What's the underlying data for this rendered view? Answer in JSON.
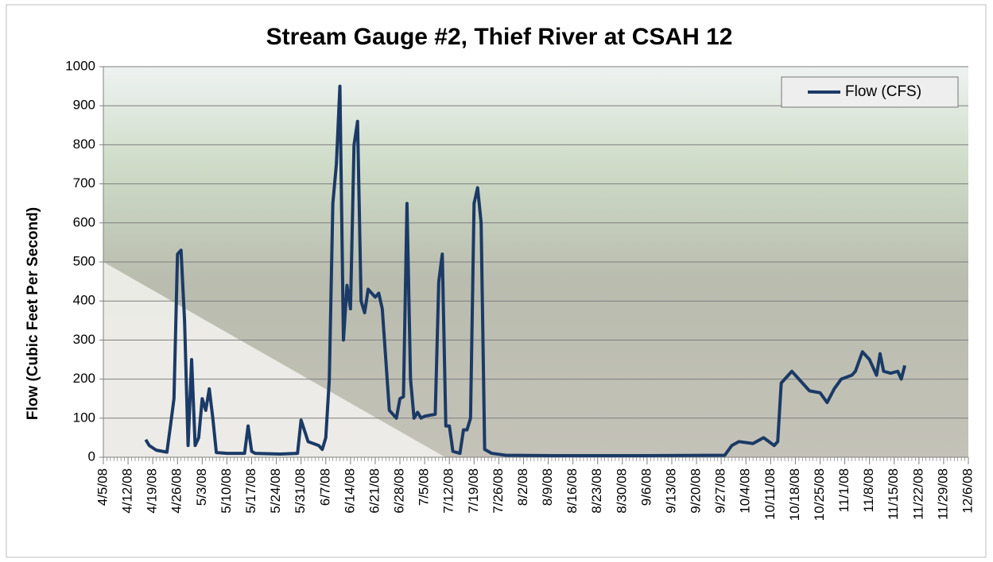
{
  "chart_data": {
    "type": "line",
    "title": "Stream Gauge #2, Thief River at CSAH 12",
    "y_label": "Flow (Cubic Feet Per Second)",
    "legend_position": "upper right",
    "grid": true,
    "x": [
      "4/17/08",
      "4/18/08",
      "4/20/08",
      "4/23/08",
      "4/24/08",
      "4/25/08",
      "4/26/08",
      "4/27/08",
      "4/28/08",
      "4/29/08",
      "4/30/08",
      "5/1/08",
      "5/2/08",
      "5/3/08",
      "5/4/08",
      "5/5/08",
      "5/6/08",
      "5/7/08",
      "5/10/08",
      "5/15/08",
      "5/16/08",
      "5/17/08",
      "5/18/08",
      "5/25/08",
      "5/30/08",
      "5/31/08",
      "6/2/08",
      "6/5/08",
      "6/6/08",
      "6/7/08",
      "6/8/08",
      "6/9/08",
      "6/10/08",
      "6/11/08",
      "6/12/08",
      "6/13/08",
      "6/14/08",
      "6/15/08",
      "6/16/08",
      "6/17/08",
      "6/18/08",
      "6/19/08",
      "6/20/08",
      "6/21/08",
      "6/22/08",
      "6/23/08",
      "6/24/08",
      "6/25/08",
      "6/26/08",
      "6/27/08",
      "6/28/08",
      "6/29/08",
      "6/30/08",
      "7/1/08",
      "7/2/08",
      "7/3/08",
      "7/4/08",
      "7/5/08",
      "7/8/08",
      "7/9/08",
      "7/10/08",
      "7/11/08",
      "7/12/08",
      "7/13/08",
      "7/15/08",
      "7/16/08",
      "7/17/08",
      "7/18/08",
      "7/19/08",
      "7/20/08",
      "7/21/08",
      "7/22/08",
      "7/24/08",
      "7/28/08",
      "8/10/08",
      "9/5/08",
      "9/28/08",
      "9/30/08",
      "10/2/08",
      "10/6/08",
      "10/9/08",
      "10/12/08",
      "10/13/08",
      "10/14/08",
      "10/15/08",
      "10/17/08",
      "10/20/08",
      "10/22/08",
      "10/25/08",
      "10/27/08",
      "10/29/08",
      "10/31/08",
      "11/3/08",
      "11/4/08",
      "11/6/08",
      "11/8/08",
      "11/10/08",
      "11/11/08",
      "11/12/08",
      "11/14/08",
      "11/16/08",
      "11/17/08",
      "11/18/08"
    ],
    "series": [
      {
        "name": "Flow (CFS)",
        "color": "#1b3a66",
        "values": [
          45,
          30,
          18,
          13,
          80,
          150,
          520,
          530,
          350,
          30,
          250,
          30,
          50,
          150,
          120,
          175,
          100,
          12,
          10,
          10,
          80,
          15,
          10,
          8,
          10,
          95,
          40,
          30,
          20,
          50,
          200,
          650,
          750,
          950,
          300,
          440,
          380,
          800,
          860,
          400,
          370,
          430,
          420,
          410,
          420,
          380,
          250,
          120,
          110,
          100,
          150,
          155,
          650,
          200,
          100,
          115,
          100,
          105,
          110,
          450,
          520,
          80,
          80,
          15,
          10,
          70,
          70,
          100,
          650,
          690,
          600,
          20,
          10,
          5,
          4,
          4,
          5,
          30,
          40,
          35,
          50,
          30,
          40,
          190,
          200,
          220,
          190,
          170,
          165,
          140,
          175,
          200,
          210,
          220,
          270,
          250,
          210,
          265,
          220,
          215,
          220,
          200,
          235
        ]
      }
    ],
    "xlim": [
      "4/5/08",
      "12/6/08"
    ],
    "xticks": [
      "4/5/08",
      "4/12/08",
      "4/19/08",
      "4/26/08",
      "5/3/08",
      "5/10/08",
      "5/17/08",
      "5/24/08",
      "5/31/08",
      "6/7/08",
      "6/14/08",
      "6/21/08",
      "6/28/08",
      "7/5/08",
      "7/12/08",
      "7/19/08",
      "7/26/08",
      "8/2/08",
      "8/9/08",
      "8/16/08",
      "8/23/08",
      "8/30/08",
      "9/6/08",
      "9/13/08",
      "9/20/08",
      "9/27/08",
      "10/4/08",
      "10/11/08",
      "10/18/08",
      "10/25/08",
      "11/1/08",
      "11/8/08",
      "11/15/08",
      "11/22/08",
      "11/29/08",
      "12/6/08"
    ],
    "ylim": [
      0,
      1000
    ],
    "yticks": [
      0,
      100,
      200,
      300,
      400,
      500,
      600,
      700,
      800,
      900,
      1000
    ]
  }
}
